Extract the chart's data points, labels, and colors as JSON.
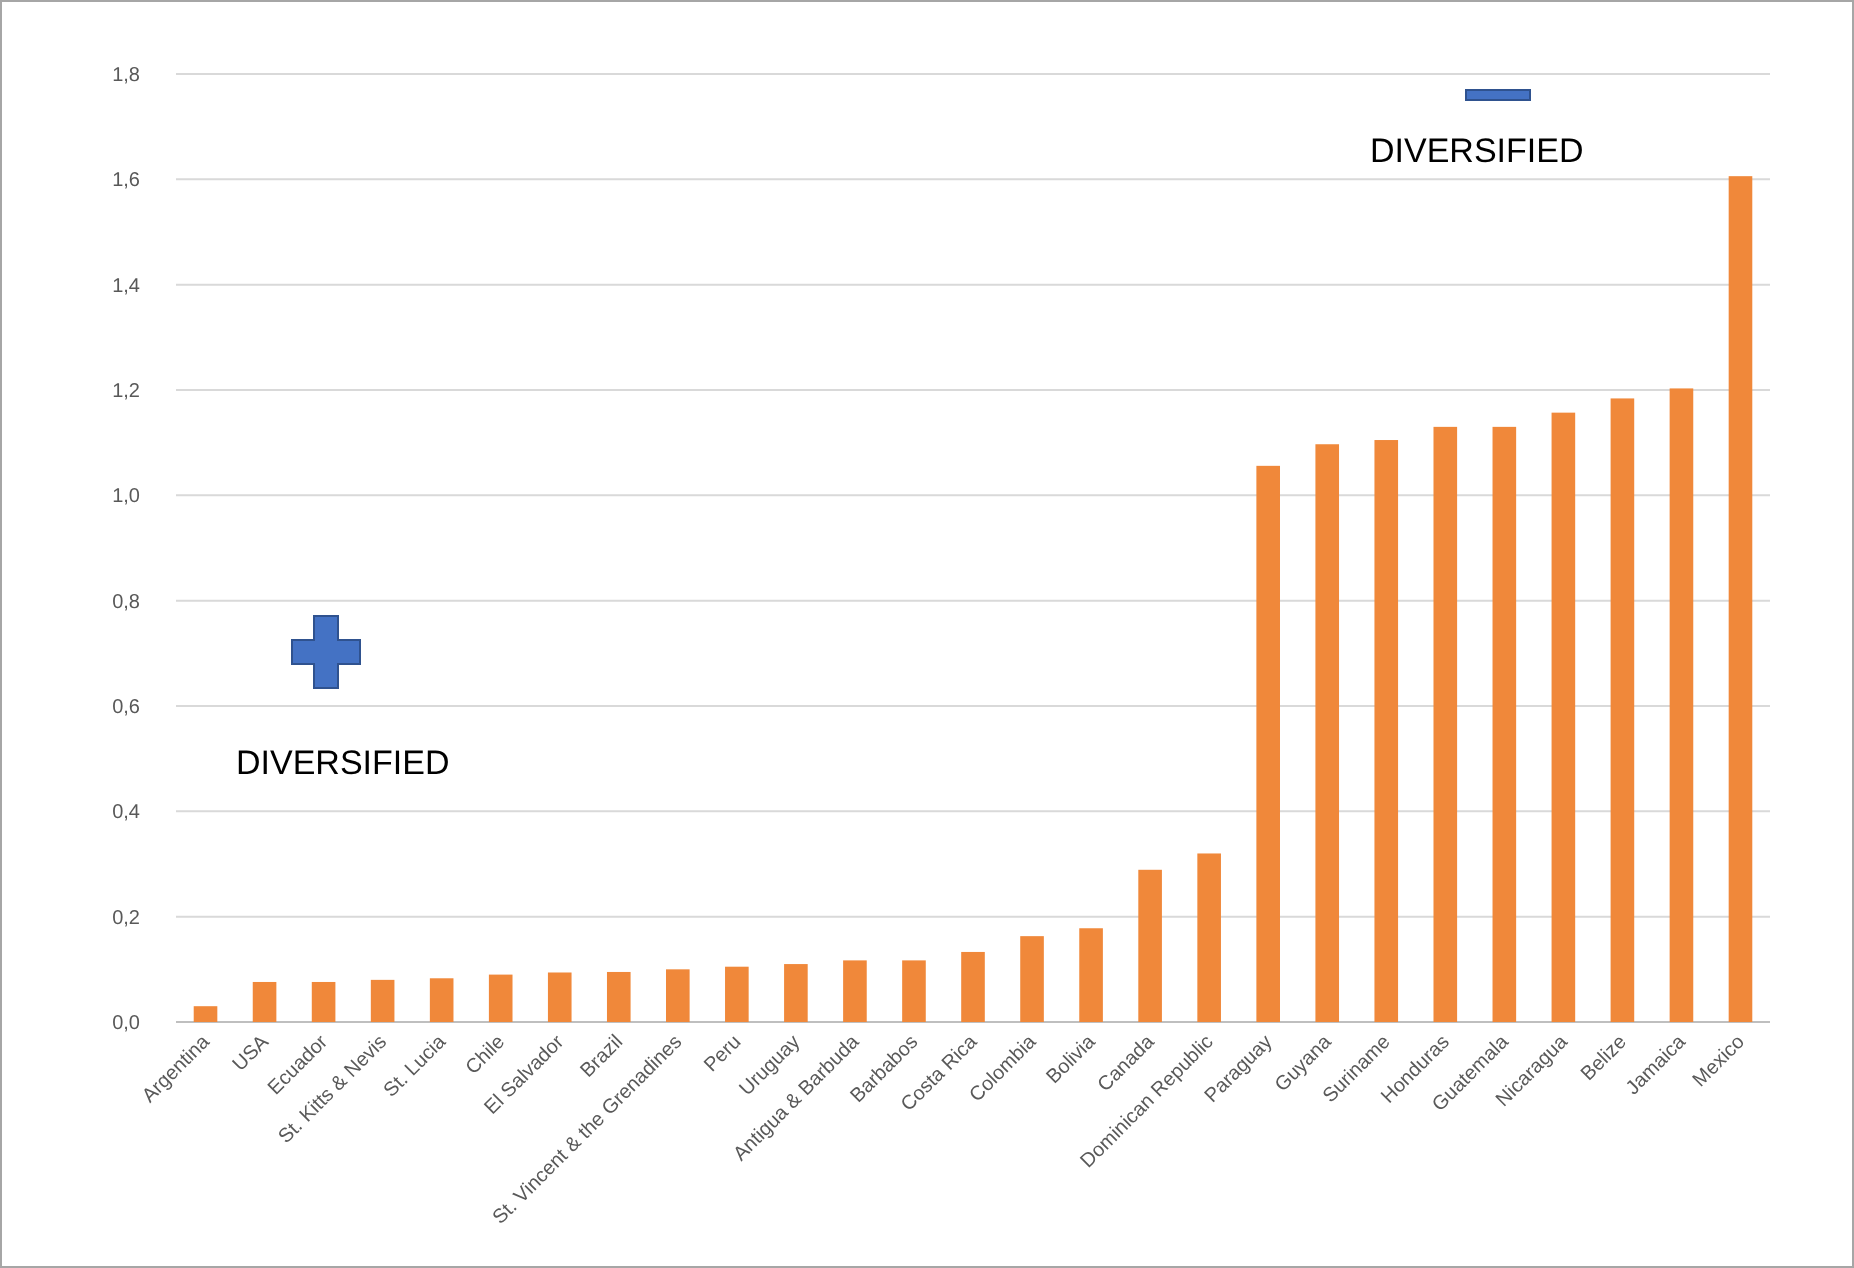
{
  "chart_data": {
    "type": "bar",
    "categories": [
      "Argentina",
      "USA",
      "Ecuador",
      "St. Kitts & Nevis",
      "St. Lucia",
      "Chile",
      "El Salvador",
      "Brazil",
      "St. Vincent & the Grenadines",
      "Peru",
      "Uruguay",
      "Antigua & Barbuda",
      "Barbabos",
      "Costa Rica",
      "Colombia",
      "Bolivia",
      "Canada",
      "Dominican Republic",
      "Paraguay",
      "Guyana",
      "Suriname",
      "Honduras",
      "Guatemala",
      "Nicaragua",
      "Belize",
      "Jamaica",
      "Mexico"
    ],
    "values": [
      0.03,
      0.076,
      0.076,
      0.08,
      0.083,
      0.09,
      0.094,
      0.095,
      0.1,
      0.105,
      0.11,
      0.117,
      0.117,
      0.133,
      0.163,
      0.178,
      0.289,
      0.32,
      1.056,
      1.097,
      1.105,
      1.13,
      1.13,
      1.157,
      1.184,
      1.203,
      1.606
    ],
    "color": "#f0883a",
    "ylim": [
      0,
      1.8
    ],
    "yticks": [
      {
        "value": 0,
        "label": "0,0"
      },
      {
        "value": 0.2,
        "label": "0,2"
      },
      {
        "value": 0.4,
        "label": "0,4"
      },
      {
        "value": 0.6,
        "label": "0,6"
      },
      {
        "value": 0.8,
        "label": "0,8"
      },
      {
        "value": 1.0,
        "label": "1,0"
      },
      {
        "value": 1.2,
        "label": "1,2"
      },
      {
        "value": 1.4,
        "label": "1,4"
      },
      {
        "value": 1.6,
        "label": "1,6"
      },
      {
        "value": 1.8,
        "label": "1,8"
      }
    ],
    "grid": "y",
    "annotations": [
      "DIVERSIFIED",
      "DIVERSIFIED"
    ]
  }
}
